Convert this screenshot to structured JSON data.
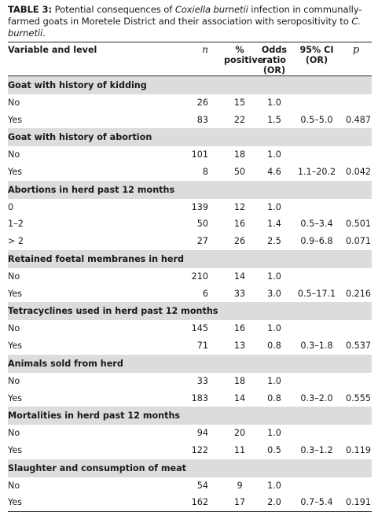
{
  "caption": {
    "label": "TABLE 3:",
    "text_before": " Potential consequences of ",
    "organism1": "Coxiella burnetii",
    "text_middle": " infection in communally-farmed goats in Moretele District and their association with seropositivity to ",
    "organism2": "C. burnetii",
    "text_after": "."
  },
  "columns": {
    "variable": "Variable and level",
    "n": "n",
    "pct_line1": "%",
    "pct_line2": "positive",
    "or_line1": "Odds ratio",
    "or_line2": "(OR)",
    "ci_line1": "95% CI",
    "ci_line2": "(OR)",
    "p": "p"
  },
  "groups": [
    {
      "title": "Goat with history of kidding",
      "rows": [
        {
          "level": "No",
          "n": "26",
          "pct": "15",
          "or": "1.0",
          "ci": "",
          "p": ""
        },
        {
          "level": "Yes",
          "n": "83",
          "pct": "22",
          "or": "1.5",
          "ci": "0.5–5.0",
          "p": "0.487"
        }
      ]
    },
    {
      "title": "Goat with history of abortion",
      "rows": [
        {
          "level": "No",
          "n": "101",
          "pct": "18",
          "or": "1.0",
          "ci": "",
          "p": ""
        },
        {
          "level": "Yes",
          "n": "8",
          "pct": "50",
          "or": "4.6",
          "ci": "1.1–20.2",
          "p": "0.042"
        }
      ]
    },
    {
      "title": "Abortions in herd past 12 months",
      "rows": [
        {
          "level": "0",
          "n": "139",
          "pct": "12",
          "or": "1.0",
          "ci": "",
          "p": ""
        },
        {
          "level": "1–2",
          "n": "50",
          "pct": "16",
          "or": "1.4",
          "ci": "0.5–3.4",
          "p": "0.501"
        },
        {
          "level": "> 2",
          "n": "27",
          "pct": "26",
          "or": "2.5",
          "ci": "0.9–6.8",
          "p": "0.071"
        }
      ]
    },
    {
      "title": "Retained foetal membranes in herd",
      "rows": [
        {
          "level": "No",
          "n": "210",
          "pct": "14",
          "or": "1.0",
          "ci": "",
          "p": ""
        },
        {
          "level": "Yes",
          "n": "6",
          "pct": "33",
          "or": "3.0",
          "ci": "0.5–17.1",
          "p": "0.216"
        }
      ]
    },
    {
      "title": "Tetracyclines used in herd past 12 months",
      "rows": [
        {
          "level": "No",
          "n": "145",
          "pct": "16",
          "or": "1.0",
          "ci": "",
          "p": ""
        },
        {
          "level": "Yes",
          "n": "71",
          "pct": "13",
          "or": "0.8",
          "ci": "0.3–1.8",
          "p": "0.537"
        }
      ]
    },
    {
      "title": "Animals sold from herd",
      "rows": [
        {
          "level": "No",
          "n": "33",
          "pct": "18",
          "or": "1.0",
          "ci": "",
          "p": ""
        },
        {
          "level": "Yes",
          "n": "183",
          "pct": "14",
          "or": "0.8",
          "ci": "0.3–2.0",
          "p": "0.555"
        }
      ]
    },
    {
      "title": "Mortalities in herd past 12 months",
      "rows": [
        {
          "level": "No",
          "n": "94",
          "pct": "20",
          "or": "1.0",
          "ci": "",
          "p": ""
        },
        {
          "level": "Yes",
          "n": "122",
          "pct": "11",
          "or": "0.5",
          "ci": "0.3–1.2",
          "p": "0.119"
        }
      ]
    },
    {
      "title": "Slaughter and consumption of meat",
      "rows": [
        {
          "level": "No",
          "n": "54",
          "pct": "9",
          "or": "1.0",
          "ci": "",
          "p": ""
        },
        {
          "level": "Yes",
          "n": "162",
          "pct": "17",
          "or": "2.0",
          "ci": "0.7–5.4",
          "p": "0.191"
        }
      ]
    }
  ],
  "colors": {
    "group_header_bg": "#dcdcdc",
    "rule": "#2a2a2a",
    "text": "#1a1a1a"
  }
}
